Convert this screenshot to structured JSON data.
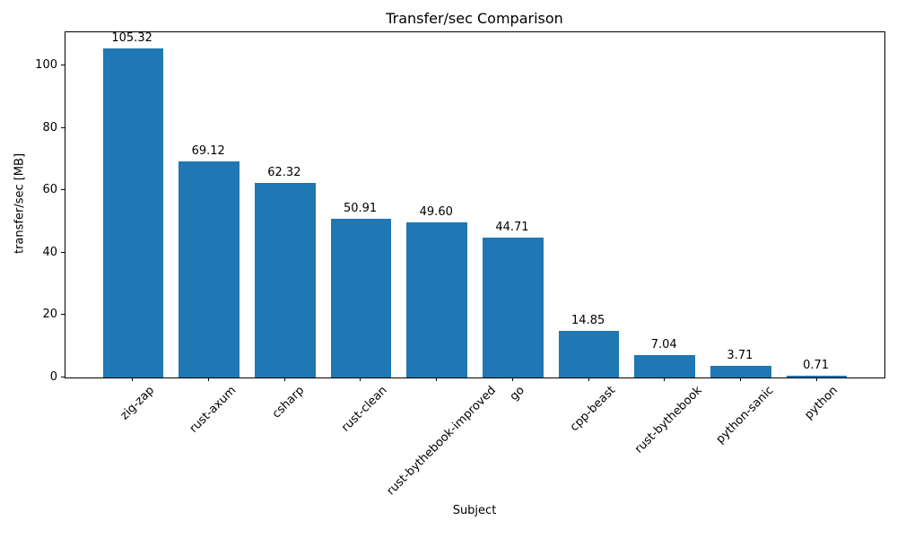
{
  "chart_data": {
    "type": "bar",
    "title": "Transfer/sec Comparison",
    "xlabel": "Subject",
    "ylabel": "transfer/sec [MB]",
    "categories": [
      "zig-zap",
      "rust-axum",
      "csharp",
      "rust-clean",
      "rust-bythebook-improved",
      "go",
      "cpp-beast",
      "rust-bythebook",
      "python-sanic",
      "python"
    ],
    "values": [
      105.32,
      69.12,
      62.32,
      50.91,
      49.6,
      44.71,
      14.85,
      7.04,
      3.71,
      0.71
    ],
    "value_labels": [
      "105.32",
      "69.12",
      "62.32",
      "50.91",
      "49.60",
      "44.71",
      "14.85",
      "7.04",
      "3.71",
      "0.71"
    ],
    "yticks": [
      0,
      20,
      40,
      60,
      80,
      100
    ],
    "ylim": [
      0,
      110.6
    ],
    "bar_color": "#1f77b4",
    "grid": false,
    "legend": null,
    "x_tick_rotation_deg": 45
  }
}
